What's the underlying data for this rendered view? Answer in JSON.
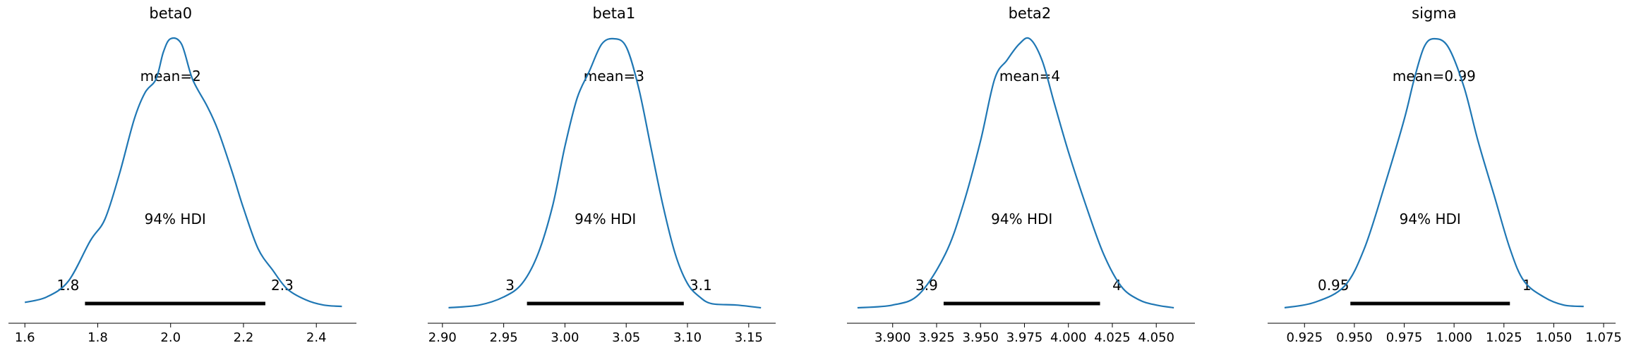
{
  "chart_data": [
    {
      "type": "line",
      "title": "beta0",
      "mean_label": "mean=2",
      "hdi_label": "94% HDI",
      "hdi_low_label": "1.8",
      "hdi_high_label": "2.3",
      "hdi": [
        1.765,
        2.26
      ],
      "xlim": [
        1.555,
        2.51
      ],
      "ticks": [
        1.6,
        1.8,
        2.0,
        2.2,
        2.4
      ],
      "tick_labels": [
        "1.6",
        "1.8",
        "2.0",
        "2.2",
        "2.4"
      ],
      "density_shape": [
        [
          1.6,
          0.02
        ],
        [
          1.66,
          0.04
        ],
        [
          1.72,
          0.1
        ],
        [
          1.78,
          0.25
        ],
        [
          1.82,
          0.33
        ],
        [
          1.86,
          0.5
        ],
        [
          1.9,
          0.7
        ],
        [
          1.93,
          0.8
        ],
        [
          1.96,
          0.85
        ],
        [
          1.98,
          0.95
        ],
        [
          2.0,
          1.0
        ],
        [
          2.03,
          0.98
        ],
        [
          2.06,
          0.85
        ],
        [
          2.1,
          0.75
        ],
        [
          2.13,
          0.66
        ],
        [
          2.17,
          0.5
        ],
        [
          2.2,
          0.37
        ],
        [
          2.24,
          0.22
        ],
        [
          2.28,
          0.14
        ],
        [
          2.32,
          0.07
        ],
        [
          2.37,
          0.03
        ],
        [
          2.42,
          0.01
        ],
        [
          2.47,
          0.005
        ]
      ]
    },
    {
      "type": "line",
      "title": "beta1",
      "mean_label": "mean=3",
      "hdi_label": "94% HDI",
      "hdi_low_label": "3",
      "hdi_high_label": "3.1",
      "hdi": [
        2.969,
        3.097
      ],
      "xlim": [
        2.888,
        3.172
      ],
      "ticks": [
        2.9,
        2.95,
        3.0,
        3.05,
        3.1,
        3.15
      ],
      "tick_labels": [
        "2.90",
        "2.95",
        "3.00",
        "3.05",
        "3.10",
        "3.15"
      ],
      "density_shape": [
        [
          2.905,
          0.0
        ],
        [
          2.93,
          0.01
        ],
        [
          2.95,
          0.04
        ],
        [
          2.965,
          0.09
        ],
        [
          2.978,
          0.2
        ],
        [
          2.99,
          0.38
        ],
        [
          3.0,
          0.6
        ],
        [
          3.01,
          0.78
        ],
        [
          3.02,
          0.88
        ],
        [
          3.03,
          0.98
        ],
        [
          3.04,
          1.0
        ],
        [
          3.05,
          0.97
        ],
        [
          3.06,
          0.82
        ],
        [
          3.07,
          0.6
        ],
        [
          3.08,
          0.38
        ],
        [
          3.09,
          0.2
        ],
        [
          3.1,
          0.09
        ],
        [
          3.11,
          0.04
        ],
        [
          3.12,
          0.015
        ],
        [
          3.14,
          0.01
        ],
        [
          3.16,
          0.0
        ]
      ]
    },
    {
      "type": "line",
      "title": "beta2",
      "mean_label": "mean=4",
      "hdi_label": "94% HDI",
      "hdi_low_label": "3.9",
      "hdi_high_label": "4",
      "hdi": [
        3.929,
        4.018
      ],
      "xlim": [
        3.874,
        4.072
      ],
      "ticks": [
        3.9,
        3.925,
        3.95,
        3.975,
        4.0,
        4.025,
        4.05
      ],
      "tick_labels": [
        "3.900",
        "3.925",
        "3.950",
        "3.975",
        "4.000",
        "4.025",
        "4.050"
      ],
      "density_shape": [
        [
          3.88,
          0.0
        ],
        [
          3.9,
          0.01
        ],
        [
          3.915,
          0.05
        ],
        [
          3.93,
          0.2
        ],
        [
          3.94,
          0.38
        ],
        [
          3.95,
          0.62
        ],
        [
          3.958,
          0.85
        ],
        [
          3.965,
          0.92
        ],
        [
          3.972,
          0.98
        ],
        [
          3.978,
          1.0
        ],
        [
          3.985,
          0.92
        ],
        [
          3.992,
          0.76
        ],
        [
          4.0,
          0.58
        ],
        [
          4.01,
          0.38
        ],
        [
          4.02,
          0.2
        ],
        [
          4.03,
          0.08
        ],
        [
          4.04,
          0.03
        ],
        [
          4.05,
          0.01
        ],
        [
          4.06,
          0.0
        ]
      ]
    },
    {
      "type": "line",
      "title": "sigma",
      "mean_label": "mean=0.99",
      "hdi_label": "94% HDI",
      "hdi_low_label": "0.95",
      "hdi_high_label": "1",
      "hdi": [
        0.948,
        1.028
      ],
      "xlim": [
        0.9065,
        1.081
      ],
      "ticks": [
        0.925,
        0.95,
        0.975,
        1.0,
        1.025,
        1.05,
        1.075
      ],
      "tick_labels": [
        "0.925",
        "0.950",
        "0.975",
        "1.000",
        "1.025",
        "1.050",
        "1.075"
      ],
      "density_shape": [
        [
          0.915,
          0.0
        ],
        [
          0.93,
          0.02
        ],
        [
          0.945,
          0.08
        ],
        [
          0.955,
          0.22
        ],
        [
          0.965,
          0.45
        ],
        [
          0.975,
          0.7
        ],
        [
          0.98,
          0.85
        ],
        [
          0.985,
          0.97
        ],
        [
          0.99,
          1.0
        ],
        [
          0.997,
          0.97
        ],
        [
          1.005,
          0.82
        ],
        [
          1.012,
          0.62
        ],
        [
          1.02,
          0.42
        ],
        [
          1.028,
          0.22
        ],
        [
          1.035,
          0.1
        ],
        [
          1.045,
          0.04
        ],
        [
          1.055,
          0.01
        ],
        [
          1.065,
          0.005
        ]
      ]
    }
  ]
}
